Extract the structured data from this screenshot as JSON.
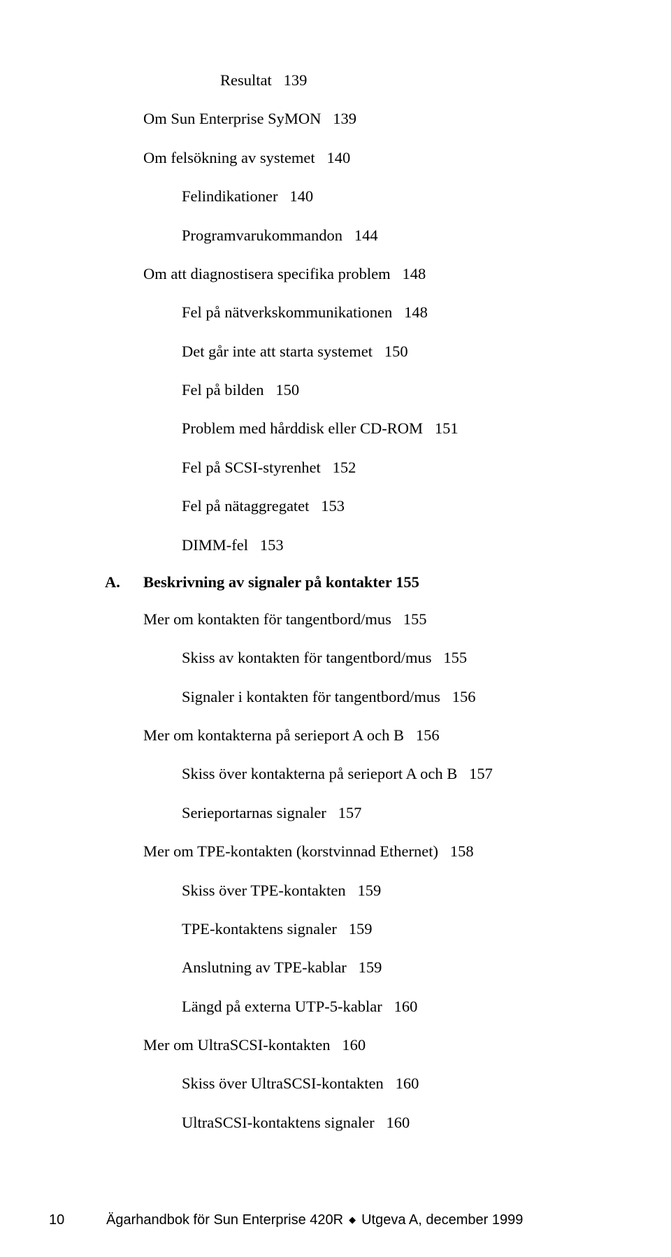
{
  "toc": [
    {
      "text": "Resultat   139",
      "indent": 3
    },
    {
      "text": "Om Sun Enterprise SyMON   139",
      "indent": 1
    },
    {
      "text": "Om felsökning av systemet   140",
      "indent": 1
    },
    {
      "text": "Felindikationer   140",
      "indent": 2
    },
    {
      "text": "Programvarukommandon   144",
      "indent": 2
    },
    {
      "text": "Om att diagnostisera specifika problem   148",
      "indent": 1
    },
    {
      "text": "Fel på nätverkskommunikationen   148",
      "indent": 2
    },
    {
      "text": "Det går inte att starta systemet   150",
      "indent": 2
    },
    {
      "text": "Fel på bilden   150",
      "indent": 2
    },
    {
      "text": "Problem med hårddisk eller CD-ROM   151",
      "indent": 2
    },
    {
      "text": "Fel på SCSI-styrenhet   152",
      "indent": 2
    },
    {
      "text": "Fel på nätaggregatet   153",
      "indent": 2
    },
    {
      "text": "DIMM-fel   153",
      "indent": 2
    }
  ],
  "appendix": {
    "letter": "A.",
    "title": "Beskrivning av signaler på kontakter   155"
  },
  "toc2": [
    {
      "text": "Mer om kontakten för tangentbord/mus   155",
      "indent": 1
    },
    {
      "text": "Skiss av kontakten för tangentbord/mus   155",
      "indent": 2
    },
    {
      "text": "Signaler i kontakten för tangentbord/mus   156",
      "indent": 2
    },
    {
      "text": "Mer om kontakterna på serieport A och B   156",
      "indent": 1
    },
    {
      "text": "Skiss över kontakterna på serieport A och B   157",
      "indent": 2
    },
    {
      "text": "Serieportarnas signaler   157",
      "indent": 2
    },
    {
      "text": "Mer om TPE-kontakten (korstvinnad Ethernet)   158",
      "indent": 1
    },
    {
      "text": "Skiss över TPE-kontakten   159",
      "indent": 2
    },
    {
      "text": "TPE-kontaktens signaler   159",
      "indent": 2
    },
    {
      "text": "Anslutning av TPE-kablar   159",
      "indent": 2
    },
    {
      "text": "Längd på externa UTP-5-kablar   160",
      "indent": 2
    },
    {
      "text": "Mer om UltraSCSI-kontakten   160",
      "indent": 1
    },
    {
      "text": "Skiss över UltraSCSI-kontakten   160",
      "indent": 2
    },
    {
      "text": "UltraSCSI-kontaktens signaler   160",
      "indent": 2
    }
  ],
  "footer": {
    "page_number": "10",
    "book_title": "Ägarhandbok för Sun Enterprise 420R",
    "edition": "Utgeva A, december 1999"
  }
}
